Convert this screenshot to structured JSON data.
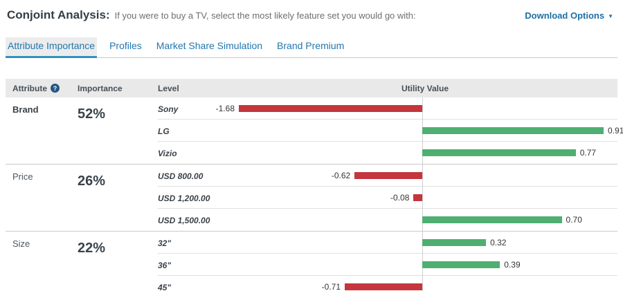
{
  "header": {
    "title": "Conjoint Analysis:",
    "subtitle": "If you were to buy a TV, select the most likely feature set you would go with:",
    "download_label": "Download Options"
  },
  "icons": {
    "help": "?",
    "dropdown_arrow": "▼"
  },
  "tabs": [
    {
      "label": "Attribute Importance",
      "active": true
    },
    {
      "label": "Profiles",
      "active": false
    },
    {
      "label": "Market Share Simulation",
      "active": false
    },
    {
      "label": "Brand Premium",
      "active": false
    }
  ],
  "table": {
    "columns": {
      "attribute": "Attribute",
      "importance": "Importance",
      "level": "Level",
      "utility": "Utility Value"
    }
  },
  "chart_data": {
    "type": "bar",
    "orientation": "horizontal",
    "value_label_format": "2dp",
    "zero_axis_line": true,
    "colors": {
      "positive": "#4fae72",
      "negative": "#c4353d"
    },
    "sections": [
      {
        "attribute": "Brand",
        "importance": "52%",
        "levels": [
          {
            "label": "Sony",
            "value": -1.68
          },
          {
            "label": "LG",
            "value": 0.91
          },
          {
            "label": "Vizio",
            "value": 0.77
          }
        ]
      },
      {
        "attribute": "Price",
        "importance": "26%",
        "levels": [
          {
            "label": "USD 800.00",
            "value": -0.62
          },
          {
            "label": "USD 1,200.00",
            "value": -0.08
          },
          {
            "label": "USD 1,500.00",
            "value": 0.7
          }
        ]
      },
      {
        "attribute": "Size",
        "importance": "22%",
        "levels": [
          {
            "label": "32\"",
            "value": 0.32
          },
          {
            "label": "36\"",
            "value": 0.39
          },
          {
            "label": "45\"",
            "value": -0.71
          }
        ]
      }
    ]
  }
}
